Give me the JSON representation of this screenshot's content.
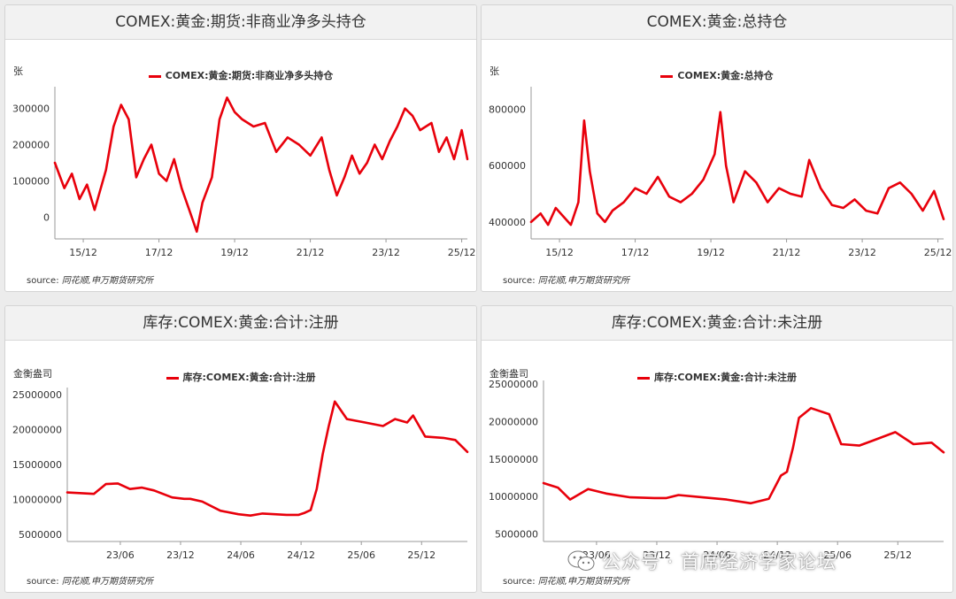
{
  "colors": {
    "line": "#e8000b",
    "axis": "#999999",
    "text": "#333333"
  },
  "source_label": "source:",
  "source_text": "同花顺,申万期货研究所",
  "watermark": {
    "icon": "wechat-icon",
    "text": "公众号 · 首席经济学家论坛"
  },
  "chart_data": [
    {
      "type": "line",
      "title": "COMEX:黄金:期货:非商业净多头持仓",
      "ylabel": "张",
      "ylim": [
        -60000,
        360000
      ],
      "yticks": [
        0,
        100000,
        200000,
        300000
      ],
      "xticks": [
        "15/12",
        "17/12",
        "19/12",
        "21/12",
        "23/12",
        "25/12"
      ],
      "series": [
        {
          "name": "COMEX:黄金:期货:非商业净多头持仓",
          "x": [
            2014.95,
            2015.2,
            2015.4,
            2015.6,
            2015.8,
            2016.0,
            2016.3,
            2016.5,
            2016.7,
            2016.9,
            2017.1,
            2017.3,
            2017.5,
            2017.7,
            2017.9,
            2018.1,
            2018.3,
            2018.5,
            2018.7,
            2018.85,
            2019.1,
            2019.3,
            2019.5,
            2019.7,
            2019.9,
            2020.2,
            2020.5,
            2020.8,
            2021.1,
            2021.4,
            2021.7,
            2022.0,
            2022.2,
            2022.4,
            2022.6,
            2022.8,
            2023.0,
            2023.2,
            2023.4,
            2023.6,
            2023.8,
            2024.0,
            2024.2,
            2024.4,
            2024.6,
            2024.9,
            2025.1,
            2025.3,
            2025.5,
            2025.7,
            2025.85
          ],
          "values": [
            150000,
            80000,
            120000,
            50000,
            90000,
            20000,
            130000,
            250000,
            310000,
            270000,
            110000,
            160000,
            200000,
            120000,
            100000,
            160000,
            80000,
            20000,
            -40000,
            40000,
            110000,
            270000,
            330000,
            290000,
            270000,
            250000,
            260000,
            180000,
            220000,
            200000,
            170000,
            220000,
            130000,
            60000,
            110000,
            170000,
            120000,
            150000,
            200000,
            160000,
            210000,
            250000,
            300000,
            280000,
            240000,
            260000,
            180000,
            220000,
            160000,
            240000,
            160000
          ]
        }
      ]
    },
    {
      "type": "line",
      "title": "COMEX:黄金:总持仓",
      "ylabel": "张",
      "ylim": [
        340000,
        880000
      ],
      "yticks": [
        400000,
        600000,
        800000
      ],
      "xticks": [
        "15/12",
        "17/12",
        "19/12",
        "21/12",
        "23/12",
        "25/12"
      ],
      "series": [
        {
          "name": "COMEX:黄金:总持仓",
          "x": [
            2014.95,
            2015.2,
            2015.4,
            2015.6,
            2015.8,
            2016.0,
            2016.2,
            2016.35,
            2016.5,
            2016.7,
            2016.9,
            2017.1,
            2017.4,
            2017.7,
            2018.0,
            2018.3,
            2018.6,
            2018.9,
            2019.2,
            2019.5,
            2019.8,
            2019.95,
            2020.1,
            2020.3,
            2020.6,
            2020.9,
            2021.2,
            2021.5,
            2021.8,
            2022.1,
            2022.3,
            2022.6,
            2022.9,
            2023.2,
            2023.5,
            2023.8,
            2024.1,
            2024.4,
            2024.7,
            2025.0,
            2025.3,
            2025.6,
            2025.85
          ],
          "values": [
            400000,
            430000,
            390000,
            450000,
            420000,
            390000,
            470000,
            760000,
            580000,
            430000,
            400000,
            440000,
            470000,
            520000,
            500000,
            560000,
            490000,
            470000,
            500000,
            550000,
            640000,
            790000,
            600000,
            470000,
            580000,
            540000,
            470000,
            520000,
            500000,
            490000,
            620000,
            520000,
            460000,
            450000,
            480000,
            440000,
            430000,
            520000,
            540000,
            500000,
            440000,
            510000,
            410000
          ]
        }
      ]
    },
    {
      "type": "line",
      "title": "库存:COMEX:黄金:合计:注册",
      "ylabel": "金衡盎司",
      "ylim": [
        4000000,
        26000000
      ],
      "yticks": [
        5000000,
        10000000,
        15000000,
        20000000,
        25000000
      ],
      "xticks": [
        "23/06",
        "23/12",
        "24/06",
        "24/12",
        "25/06",
        "25/12"
      ],
      "series": [
        {
          "name": "库存:COMEX:黄金:合计:注册",
          "x": [
            2022.98,
            2023.1,
            2023.2,
            2023.3,
            2023.4,
            2023.5,
            2023.6,
            2023.7,
            2023.85,
            2023.95,
            2024.0,
            2024.1,
            2024.25,
            2024.4,
            2024.5,
            2024.6,
            2024.7,
            2024.8,
            2024.9,
            2024.95,
            2025.0,
            2025.05,
            2025.1,
            2025.15,
            2025.2,
            2025.3,
            2025.45,
            2025.6,
            2025.7,
            2025.8,
            2025.85,
            2025.95,
            2026.1,
            2026.2,
            2026.3
          ],
          "values": [
            11000000,
            10900000,
            10800000,
            12200000,
            12300000,
            11500000,
            11700000,
            11300000,
            10300000,
            10100000,
            10100000,
            9700000,
            8400000,
            7900000,
            7700000,
            8000000,
            7900000,
            7800000,
            7800000,
            8100000,
            8500000,
            11500000,
            16500000,
            20500000,
            24000000,
            21500000,
            21000000,
            20500000,
            21500000,
            21000000,
            22000000,
            19000000,
            18800000,
            18500000,
            16800000
          ]
        }
      ]
    },
    {
      "type": "line",
      "title": "库存:COMEX:黄金:合计:未注册",
      "ylabel": "金衡盎司",
      "ylim": [
        4000000,
        25500000
      ],
      "yticks": [
        5000000,
        10000000,
        15000000,
        20000000,
        25000000
      ],
      "xticks": [
        "23/06",
        "23/12",
        "24/06",
        "24/12",
        "25/06",
        "25/12"
      ],
      "series": [
        {
          "name": "库存:COMEX:黄金:合计:未注册",
          "x": [
            2022.98,
            2023.1,
            2023.2,
            2023.35,
            2023.5,
            2023.7,
            2023.9,
            2024.0,
            2024.1,
            2024.3,
            2024.5,
            2024.7,
            2024.85,
            2024.95,
            2025.0,
            2025.05,
            2025.1,
            2025.2,
            2025.35,
            2025.45,
            2025.6,
            2025.7,
            2025.9,
            2026.05,
            2026.2,
            2026.3
          ],
          "values": [
            11800000,
            11200000,
            9600000,
            11000000,
            10400000,
            9900000,
            9800000,
            9800000,
            10200000,
            9900000,
            9600000,
            9100000,
            9700000,
            12800000,
            13300000,
            16500000,
            20500000,
            21800000,
            21000000,
            17000000,
            16800000,
            17400000,
            18600000,
            17000000,
            17200000,
            15900000
          ]
        }
      ]
    }
  ]
}
